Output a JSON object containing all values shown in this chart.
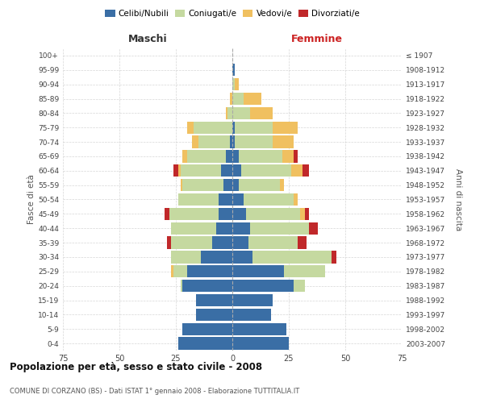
{
  "age_groups": [
    "0-4",
    "5-9",
    "10-14",
    "15-19",
    "20-24",
    "25-29",
    "30-34",
    "35-39",
    "40-44",
    "45-49",
    "50-54",
    "55-59",
    "60-64",
    "65-69",
    "70-74",
    "75-79",
    "80-84",
    "85-89",
    "90-94",
    "95-99",
    "100+"
  ],
  "birth_years": [
    "2003-2007",
    "1998-2002",
    "1993-1997",
    "1988-1992",
    "1983-1987",
    "1978-1982",
    "1973-1977",
    "1968-1972",
    "1963-1967",
    "1958-1962",
    "1953-1957",
    "1948-1952",
    "1943-1947",
    "1938-1942",
    "1933-1937",
    "1928-1932",
    "1923-1927",
    "1918-1922",
    "1913-1917",
    "1908-1912",
    "≤ 1907"
  ],
  "males": {
    "celibe": [
      24,
      22,
      16,
      16,
      22,
      20,
      14,
      9,
      7,
      6,
      6,
      4,
      5,
      3,
      1,
      0,
      0,
      0,
      0,
      0,
      0
    ],
    "coniugato": [
      0,
      0,
      0,
      0,
      1,
      6,
      13,
      18,
      20,
      22,
      18,
      18,
      18,
      17,
      14,
      17,
      2,
      0,
      0,
      0,
      0
    ],
    "vedovo": [
      0,
      0,
      0,
      0,
      0,
      1,
      0,
      0,
      0,
      0,
      0,
      1,
      1,
      2,
      3,
      3,
      1,
      1,
      0,
      0,
      0
    ],
    "divorziato": [
      0,
      0,
      0,
      0,
      0,
      0,
      0,
      2,
      0,
      2,
      0,
      0,
      2,
      0,
      0,
      0,
      0,
      0,
      0,
      0,
      0
    ]
  },
  "females": {
    "nubile": [
      25,
      24,
      17,
      18,
      27,
      23,
      9,
      7,
      8,
      6,
      5,
      3,
      4,
      3,
      1,
      1,
      0,
      0,
      0,
      1,
      0
    ],
    "coniugata": [
      0,
      0,
      0,
      0,
      5,
      18,
      35,
      22,
      26,
      24,
      22,
      18,
      22,
      19,
      17,
      17,
      8,
      5,
      1,
      0,
      0
    ],
    "vedova": [
      0,
      0,
      0,
      0,
      0,
      0,
      0,
      0,
      0,
      2,
      2,
      2,
      5,
      5,
      9,
      11,
      10,
      8,
      2,
      0,
      0
    ],
    "divorziata": [
      0,
      0,
      0,
      0,
      0,
      0,
      2,
      4,
      4,
      2,
      0,
      0,
      3,
      2,
      0,
      0,
      0,
      0,
      0,
      0,
      0
    ]
  },
  "colors": {
    "celibe": "#3a6ea5",
    "coniugato": "#c5d9a0",
    "vedovo": "#f0c060",
    "divorziato": "#c0282a"
  },
  "title": "Popolazione per età, sesso e stato civile - 2008",
  "subtitle": "COMUNE DI CORZANO (BS) - Dati ISTAT 1° gennaio 2008 - Elaborazione TUTTITALIA.IT",
  "ylabel_left": "Fasce di età",
  "ylabel_right": "Anni di nascita",
  "xlabel_left": "Maschi",
  "xlabel_right": "Femmine",
  "xlim": 75,
  "legend_labels": [
    "Celibi/Nubili",
    "Coniugati/e",
    "Vedovi/e",
    "Divorziati/e"
  ],
  "background_color": "#ffffff",
  "grid_color": "#cccccc"
}
